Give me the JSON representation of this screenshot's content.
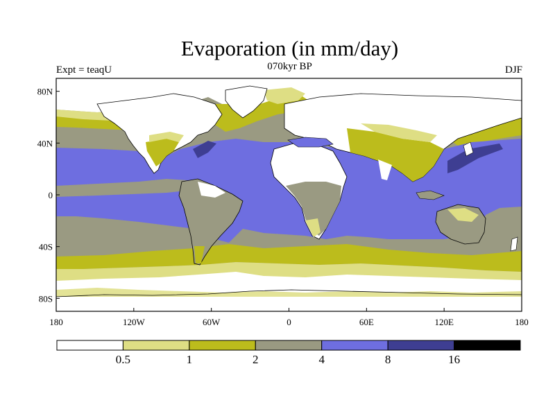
{
  "title": "Evaporation (in mm/day)",
  "subtitle": "070kyr BP",
  "left_label": "Expt = teaqU",
  "right_label": "DJF",
  "map": {
    "projection": "cylindrical-equidistant",
    "lon_range": [
      -180,
      180
    ],
    "lat_range": [
      -90,
      90
    ],
    "x_ticks": [
      {
        "lon": -180,
        "label": "180"
      },
      {
        "lon": -120,
        "label": "120W"
      },
      {
        "lon": -60,
        "label": "60W"
      },
      {
        "lon": 0,
        "label": "0"
      },
      {
        "lon": 60,
        "label": "60E"
      },
      {
        "lon": 120,
        "label": "120E"
      },
      {
        "lon": 180,
        "label": "180"
      }
    ],
    "y_ticks": [
      {
        "lat": 80,
        "label": "80N"
      },
      {
        "lat": 40,
        "label": "40N"
      },
      {
        "lat": 0,
        "label": "0"
      },
      {
        "lat": -40,
        "label": "40S"
      },
      {
        "lat": -80,
        "label": "80S"
      }
    ]
  },
  "colorbar": {
    "colors": [
      "#ffffff",
      "#dede84",
      "#bcbc1c",
      "#9a9a82",
      "#6e6ee0",
      "#3e3e92",
      "#000000"
    ],
    "labels": [
      "0.5",
      "1",
      "2",
      "4",
      "8",
      "16"
    ]
  },
  "colors": {
    "white": "#ffffff",
    "lightyellow": "#dede84",
    "olive": "#bcbc1c",
    "gray": "#9a9a82",
    "blue": "#6e6ee0",
    "darkblue": "#3e3e92"
  }
}
